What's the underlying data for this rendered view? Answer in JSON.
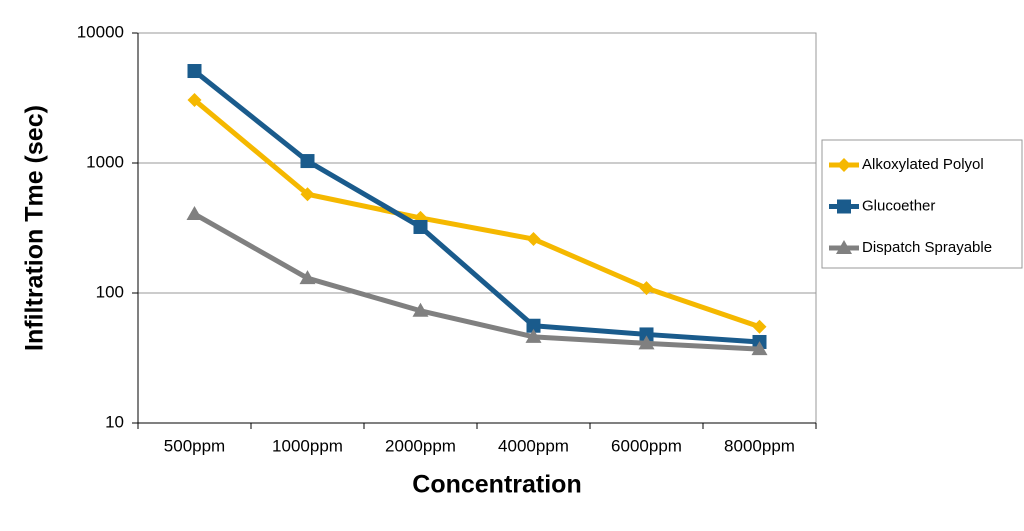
{
  "chart_data": {
    "type": "line",
    "y_label": "Infiltration Tme (sec)",
    "x_label": "Concentration",
    "categories": [
      "500ppm",
      "1000ppm",
      "2000ppm",
      "4000ppm",
      "6000ppm",
      "8000ppm"
    ],
    "series": [
      {
        "name": "Alkoxylated Polyol",
        "color": "#f5b800",
        "marker": "diamond",
        "values": [
          3050,
          575,
          378,
          260,
          109,
          55
        ]
      },
      {
        "name": "Glucoether",
        "color": "#1a5b8c",
        "marker": "square",
        "values": [
          5100,
          1035,
          322,
          56,
          48,
          42
        ]
      },
      {
        "name": "Dispatch Sprayable",
        "color": "#808080",
        "marker": "triangle",
        "values": [
          405,
          130,
          73,
          46,
          41,
          37
        ]
      }
    ],
    "ylim": [
      10,
      10000
    ],
    "yticks": [
      10,
      100,
      1000,
      10000
    ],
    "log_y": true,
    "grid": true,
    "legend": "right"
  }
}
